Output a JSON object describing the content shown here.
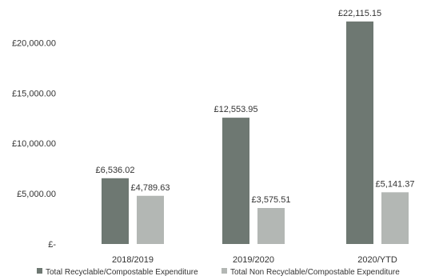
{
  "chart_data": {
    "type": "bar",
    "title": "",
    "xlabel": "",
    "ylabel": "",
    "categories": [
      "2018/2019",
      "2019/2020",
      "2020/YTD"
    ],
    "series": [
      {
        "name": "Total Recyclable/Compostable Expenditure",
        "values": [
          6536.02,
          12553.95,
          22115.15
        ],
        "labels": [
          "£6,536.02",
          "£12,553.95",
          "£22,115.15"
        ]
      },
      {
        "name": "Total Non Recyclable/Compostable Expenditure",
        "values": [
          4789.63,
          3575.51,
          5141.37
        ],
        "labels": [
          "£4,789.63",
          "£3,575.51",
          "£5,141.37"
        ]
      }
    ],
    "y_ticks": [
      {
        "value": 0,
        "label": "£-"
      },
      {
        "value": 5000,
        "label": "£5,000.00"
      },
      {
        "value": 10000,
        "label": "£10,000.00"
      },
      {
        "value": 15000,
        "label": "£15,000.00"
      },
      {
        "value": 20000,
        "label": "£20,000.00"
      }
    ],
    "ylim": [
      0,
      22500
    ],
    "grid": false,
    "legend_position": "bottom",
    "colors": {
      "series_1": "#6e7872",
      "series_2": "#b3b7b4",
      "text": "#333333"
    }
  }
}
